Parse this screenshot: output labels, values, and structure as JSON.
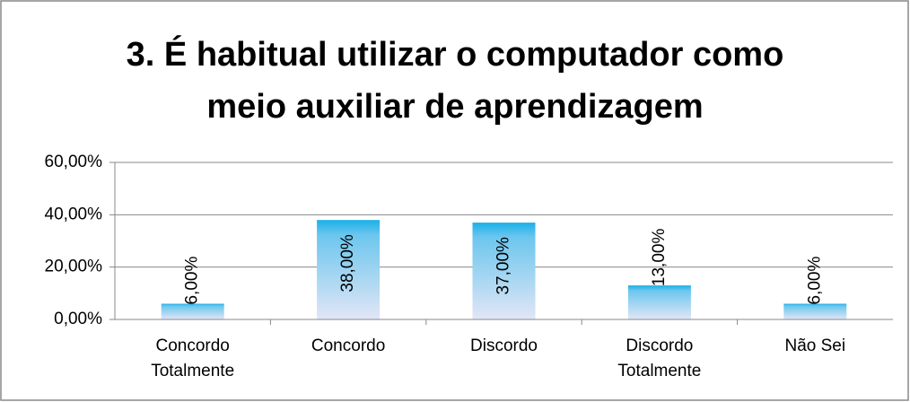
{
  "chart_data": {
    "type": "bar",
    "title": "3. É habitual utilizar o computador como meio auxiliar de aprendizagem",
    "categories": [
      "Concordo Totalmente",
      "Concordo",
      "Discordo",
      "Discordo Totalmente",
      "Não Sei"
    ],
    "values": [
      6,
      38,
      37,
      13,
      6
    ],
    "value_labels": [
      "6,00%",
      "38,00%",
      "37,00%",
      "13,00%",
      "6,00%"
    ],
    "color": "#1ab0e8",
    "ylim": [
      0,
      60
    ],
    "yticks": [
      {
        "value": 0,
        "label": "0,00%"
      },
      {
        "value": 20,
        "label": "20,00%"
      },
      {
        "value": 40,
        "label": "40,00%"
      },
      {
        "value": 60,
        "label": "60,00%"
      }
    ],
    "grid": true
  }
}
